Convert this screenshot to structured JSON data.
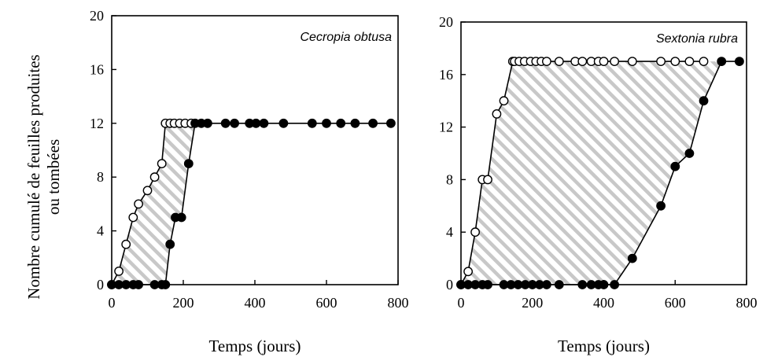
{
  "ylabel": [
    "Nombre cumulé de feuilles produites",
    "ou tombées"
  ],
  "chart_data": [
    {
      "type": "line",
      "title": "Cecropia obtusa",
      "xlabel": "Temps (jours)",
      "xlim": [
        0,
        800
      ],
      "ylim": [
        0,
        20
      ],
      "xticks": [
        0,
        200,
        400,
        600,
        800
      ],
      "yticks": [
        0,
        4,
        8,
        12,
        16,
        20
      ],
      "grid": false,
      "shaded_area": "between series (diagonal hatching)",
      "series": [
        {
          "marker": "open-circle",
          "x": [
            0,
            20,
            40,
            60,
            75,
            100,
            120,
            140,
            150,
            163,
            175,
            190,
            205,
            222
          ],
          "y": [
            0,
            1,
            3,
            5,
            6,
            7,
            8,
            9,
            12,
            12,
            12,
            12,
            12,
            12
          ]
        },
        {
          "marker": "filled-circle",
          "x": [
            0,
            20,
            40,
            60,
            75,
            120,
            140,
            150,
            163,
            178,
            195,
            215,
            233,
            250,
            268,
            318,
            343,
            385,
            403,
            425,
            480,
            560,
            600,
            640,
            680,
            730,
            780
          ],
          "y": [
            0,
            0,
            0,
            0,
            0,
            0,
            0,
            0,
            3,
            5,
            5,
            9,
            12,
            12,
            12,
            12,
            12,
            12,
            12,
            12,
            12,
            12,
            12,
            12,
            12,
            12,
            12
          ]
        }
      ]
    },
    {
      "type": "line",
      "title": "Sextonia rubra",
      "xlabel": "Temps (jours)",
      "xlim": [
        0,
        800
      ],
      "ylim": [
        0,
        20
      ],
      "xticks": [
        0,
        200,
        400,
        600,
        800
      ],
      "yticks": [
        0,
        4,
        8,
        12,
        16,
        20
      ],
      "grid": false,
      "shaded_area": "between series (diagonal hatching)",
      "series": [
        {
          "marker": "open-circle",
          "x": [
            0,
            20,
            40,
            60,
            75,
            100,
            120,
            145,
            150,
            163,
            178,
            195,
            210,
            225,
            240,
            275,
            320,
            340,
            365,
            385,
            400,
            430,
            480,
            560,
            600,
            640,
            680
          ],
          "y": [
            0,
            1,
            4,
            8,
            8,
            13,
            14,
            17,
            17,
            17,
            17,
            17,
            17,
            17,
            17,
            17,
            17,
            17,
            17,
            17,
            17,
            17,
            17,
            17,
            17,
            17,
            17
          ]
        },
        {
          "marker": "filled-circle",
          "x": [
            0,
            20,
            40,
            60,
            75,
            120,
            140,
            160,
            180,
            200,
            220,
            240,
            275,
            340,
            365,
            385,
            400,
            430,
            480,
            560,
            600,
            640,
            680,
            730,
            780
          ],
          "y": [
            0,
            0,
            0,
            0,
            0,
            0,
            0,
            0,
            0,
            0,
            0,
            0,
            0,
            0,
            0,
            0,
            0,
            0,
            2,
            6,
            9,
            10,
            14,
            17,
            17
          ]
        }
      ]
    }
  ]
}
